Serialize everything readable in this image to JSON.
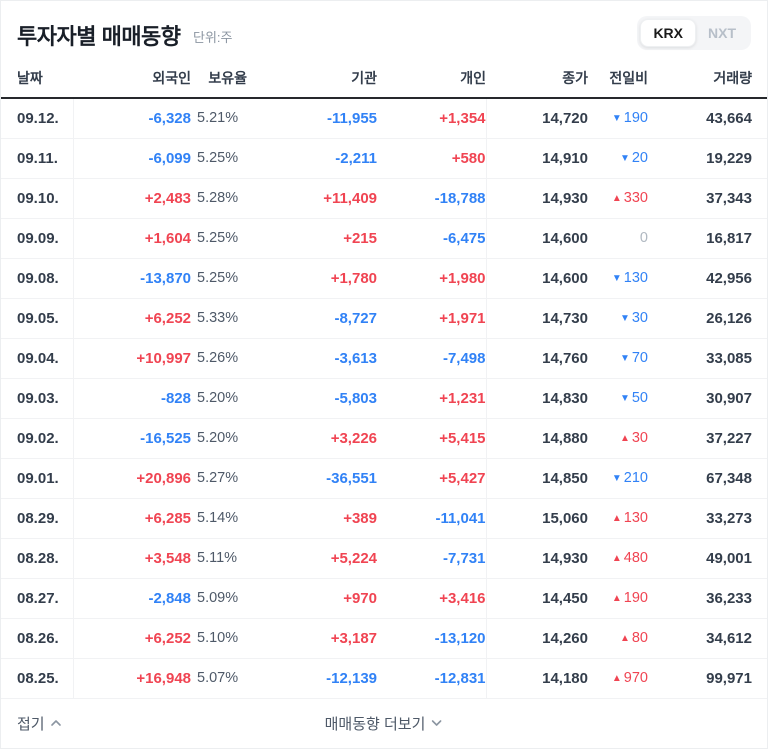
{
  "header": {
    "title": "투자자별 매매동향",
    "unit_label": "단위:주",
    "market_toggle": {
      "selected": "KRX",
      "options": [
        "KRX",
        "NXT"
      ]
    }
  },
  "colors": {
    "positive_red": "#f04452",
    "negative_blue": "#3182f6",
    "neutral_gray": "#b0b8c1",
    "text_dark": "#333d4b"
  },
  "table": {
    "columns": {
      "date": "날짜",
      "foreign": "외국인",
      "ratio": "보유율",
      "institution": "기관",
      "individual": "개인",
      "close": "종가",
      "change": "전일비",
      "volume": "거래량"
    },
    "rows": [
      {
        "date": "09.12.",
        "foreign": "-6,328",
        "ratio": "5.21%",
        "institution": "-11,955",
        "individual": "+1,354",
        "close": "14,720",
        "change_dir": "down",
        "change": "190",
        "volume": "43,664"
      },
      {
        "date": "09.11.",
        "foreign": "-6,099",
        "ratio": "5.25%",
        "institution": "-2,211",
        "individual": "+580",
        "close": "14,910",
        "change_dir": "down",
        "change": "20",
        "volume": "19,229"
      },
      {
        "date": "09.10.",
        "foreign": "+2,483",
        "ratio": "5.28%",
        "institution": "+11,409",
        "individual": "-18,788",
        "close": "14,930",
        "change_dir": "up",
        "change": "330",
        "volume": "37,343"
      },
      {
        "date": "09.09.",
        "foreign": "+1,604",
        "ratio": "5.25%",
        "institution": "+215",
        "individual": "-6,475",
        "close": "14,600",
        "change_dir": "flat",
        "change": "0",
        "volume": "16,817"
      },
      {
        "date": "09.08.",
        "foreign": "-13,870",
        "ratio": "5.25%",
        "institution": "+1,780",
        "individual": "+1,980",
        "close": "14,600",
        "change_dir": "down",
        "change": "130",
        "volume": "42,956"
      },
      {
        "date": "09.05.",
        "foreign": "+6,252",
        "ratio": "5.33%",
        "institution": "-8,727",
        "individual": "+1,971",
        "close": "14,730",
        "change_dir": "down",
        "change": "30",
        "volume": "26,126"
      },
      {
        "date": "09.04.",
        "foreign": "+10,997",
        "ratio": "5.26%",
        "institution": "-3,613",
        "individual": "-7,498",
        "close": "14,760",
        "change_dir": "down",
        "change": "70",
        "volume": "33,085"
      },
      {
        "date": "09.03.",
        "foreign": "-828",
        "ratio": "5.20%",
        "institution": "-5,803",
        "individual": "+1,231",
        "close": "14,830",
        "change_dir": "down",
        "change": "50",
        "volume": "30,907"
      },
      {
        "date": "09.02.",
        "foreign": "-16,525",
        "ratio": "5.20%",
        "institution": "+3,226",
        "individual": "+5,415",
        "close": "14,880",
        "change_dir": "up",
        "change": "30",
        "volume": "37,227"
      },
      {
        "date": "09.01.",
        "foreign": "+20,896",
        "ratio": "5.27%",
        "institution": "-36,551",
        "individual": "+5,427",
        "close": "14,850",
        "change_dir": "down",
        "change": "210",
        "volume": "67,348"
      },
      {
        "date": "08.29.",
        "foreign": "+6,285",
        "ratio": "5.14%",
        "institution": "+389",
        "individual": "-11,041",
        "close": "15,060",
        "change_dir": "up",
        "change": "130",
        "volume": "33,273"
      },
      {
        "date": "08.28.",
        "foreign": "+3,548",
        "ratio": "5.11%",
        "institution": "+5,224",
        "individual": "-7,731",
        "close": "14,930",
        "change_dir": "up",
        "change": "480",
        "volume": "49,001"
      },
      {
        "date": "08.27.",
        "foreign": "-2,848",
        "ratio": "5.09%",
        "institution": "+970",
        "individual": "+3,416",
        "close": "14,450",
        "change_dir": "up",
        "change": "190",
        "volume": "36,233"
      },
      {
        "date": "08.26.",
        "foreign": "+6,252",
        "ratio": "5.10%",
        "institution": "+3,187",
        "individual": "-13,120",
        "close": "14,260",
        "change_dir": "up",
        "change": "80",
        "volume": "34,612"
      },
      {
        "date": "08.25.",
        "foreign": "+16,948",
        "ratio": "5.07%",
        "institution": "-12,139",
        "individual": "-12,831",
        "close": "14,180",
        "change_dir": "up",
        "change": "970",
        "volume": "99,971"
      }
    ]
  },
  "footer": {
    "fold_label": "접기",
    "more_label": "매매동향 더보기"
  }
}
